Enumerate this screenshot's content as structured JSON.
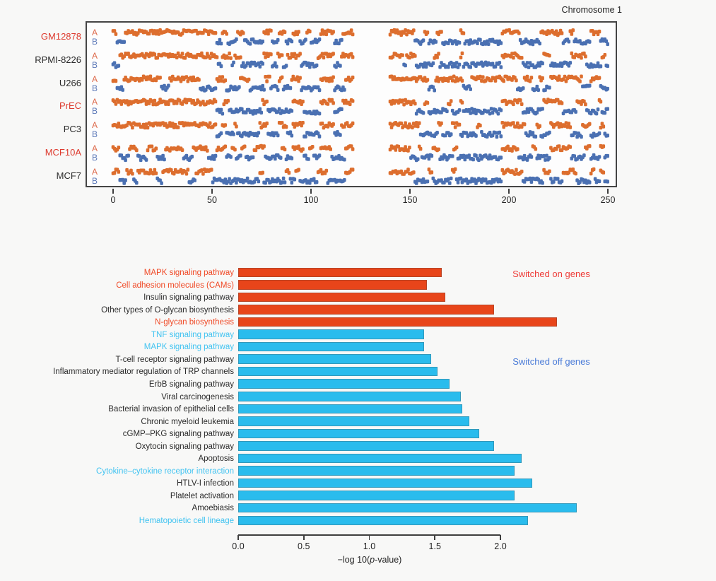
{
  "top_panel": {
    "title": "Chromosome 1",
    "track_labels": {
      "a": "A",
      "b": "B"
    },
    "cell_lines": [
      {
        "name": "GM12878",
        "label_color": "#dd3a2e"
      },
      {
        "name": "RPMI-8226",
        "label_color": "#2b2b2b"
      },
      {
        "name": "U266",
        "label_color": "#2b2b2b"
      },
      {
        "name": "PrEC",
        "label_color": "#dd3a2e"
      },
      {
        "name": "PC3",
        "label_color": "#2b2b2b"
      },
      {
        "name": "MCF10A",
        "label_color": "#dd3a2e"
      },
      {
        "name": "MCF7",
        "label_color": "#2b2b2b"
      }
    ],
    "colors": {
      "compartment_A": "#dd6e2e",
      "compartment_B": "#4a70b2",
      "a_letter": "#dd6a4c",
      "b_letter": "#5c79b8",
      "axis": "#3e3e3e"
    }
  },
  "chart_data": [
    {
      "type": "heatmap",
      "title": "Chromosome 1",
      "description": "A/B chromatin compartment calls along chromosome 1 in Mb; orange = A compartment, blue = B compartment; centromere gap has no data",
      "x_range": [
        0,
        250
      ],
      "x_ticks": [
        0,
        50,
        100,
        150,
        200,
        250
      ],
      "centromere_gap": [
        121.5,
        139.5
      ],
      "rows": [
        "GM12878",
        "RPMI-8226",
        "U266",
        "PrEC",
        "PC3",
        "MCF10A",
        "MCF7"
      ],
      "a_segments": {
        "GM12878": [
          [
            0,
            2
          ],
          [
            6,
            52
          ],
          [
            55,
            58
          ],
          [
            63,
            66
          ],
          [
            76,
            80
          ],
          [
            84,
            87
          ],
          [
            91,
            94
          ],
          [
            98,
            100
          ],
          [
            105,
            112
          ],
          [
            116,
            121.5
          ],
          [
            139.5,
            152
          ],
          [
            157,
            159.5
          ],
          [
            163.5,
            166
          ],
          [
            175,
            177.5
          ],
          [
            196,
            205.5
          ],
          [
            216,
            227
          ],
          [
            230.5,
            233
          ],
          [
            241,
            246
          ]
        ],
        "RPMI-8226": [
          [
            3.5,
            53
          ],
          [
            55,
            60
          ],
          [
            61.5,
            65
          ],
          [
            76,
            80
          ],
          [
            83,
            86
          ],
          [
            88,
            95
          ],
          [
            103,
            112
          ],
          [
            115,
            121.5
          ],
          [
            139.5,
            147
          ],
          [
            148,
            153
          ],
          [
            162,
            165
          ],
          [
            175,
            177
          ],
          [
            196,
            207
          ],
          [
            217,
            221
          ],
          [
            231,
            239
          ],
          [
            246.5,
            249
          ]
        ],
        "U266": [
          [
            0,
            2
          ],
          [
            5,
            24
          ],
          [
            28,
            44
          ],
          [
            52,
            57
          ],
          [
            64,
            69
          ],
          [
            77,
            79.5
          ],
          [
            84,
            86
          ],
          [
            90,
            95
          ],
          [
            105,
            112
          ],
          [
            117,
            121.5
          ],
          [
            139.5,
            159
          ],
          [
            163,
            177
          ],
          [
            181,
            204
          ],
          [
            207.5,
            212
          ],
          [
            215,
            217
          ],
          [
            221,
            237
          ],
          [
            241,
            246
          ]
        ],
        "PrEC": [
          [
            0,
            52
          ],
          [
            56,
            58.5
          ],
          [
            75,
            78
          ],
          [
            91,
            96
          ],
          [
            105,
            112
          ],
          [
            116,
            121.5
          ],
          [
            139.5,
            153
          ],
          [
            157,
            159
          ],
          [
            169,
            171
          ],
          [
            175,
            177
          ],
          [
            196,
            207
          ],
          [
            217,
            227
          ],
          [
            234,
            239
          ],
          [
            245,
            247
          ]
        ],
        "PC3": [
          [
            0,
            52
          ],
          [
            55,
            57
          ],
          [
            61,
            63
          ],
          [
            74,
            78
          ],
          [
            84,
            88
          ],
          [
            91,
            96
          ],
          [
            105,
            112
          ],
          [
            115,
            121.5
          ],
          [
            139.5,
            155
          ],
          [
            164,
            166
          ],
          [
            171,
            175
          ],
          [
            184,
            186
          ],
          [
            196,
            208
          ],
          [
            214,
            216
          ],
          [
            221,
            231
          ],
          [
            237,
            241
          ],
          [
            246,
            248
          ]
        ],
        "MCF10A": [
          [
            0,
            3
          ],
          [
            8,
            12
          ],
          [
            17,
            22
          ],
          [
            26,
            35
          ],
          [
            40,
            48
          ],
          [
            52,
            57
          ],
          [
            60,
            62
          ],
          [
            65,
            67
          ],
          [
            71,
            77
          ],
          [
            85,
            87
          ],
          [
            91,
            96
          ],
          [
            99,
            101
          ],
          [
            105,
            110
          ],
          [
            117,
            121.5
          ],
          [
            139.5,
            150
          ],
          [
            154,
            156
          ],
          [
            161,
            165
          ],
          [
            172,
            174
          ],
          [
            196,
            205
          ],
          [
            212,
            214
          ],
          [
            221,
            231
          ],
          [
            238,
            241
          ],
          [
            246,
            248
          ]
        ],
        "MCF7": [
          [
            0,
            3
          ],
          [
            7,
            10
          ],
          [
            12,
            22
          ],
          [
            25,
            38
          ],
          [
            42,
            50
          ],
          [
            74,
            76
          ],
          [
            87,
            89
          ],
          [
            92,
            94
          ],
          [
            103,
            108
          ],
          [
            117,
            121.5
          ],
          [
            139.5,
            152
          ],
          [
            159,
            161
          ],
          [
            171,
            173
          ],
          [
            196,
            207
          ],
          [
            217,
            221
          ],
          [
            227,
            234
          ],
          [
            241,
            243
          ],
          [
            246,
            248
          ]
        ]
      }
    },
    {
      "type": "bar",
      "orientation": "horizontal",
      "xlabel": "−log 10(p-value)",
      "xlabel_parts": {
        "prefix": "−log 10(",
        "italic": "p",
        "suffix": "-value)"
      },
      "xlim": [
        0,
        2.0
      ],
      "x_ticks": [
        "0.0",
        "0.5",
        "1.0",
        "1.5",
        "2.0"
      ],
      "categories": [
        "MAPK signaling pathway",
        "Cell adhesion molecules (CAMs)",
        "Insulin signaling pathway",
        "Other types of O-glycan biosynthesis",
        "N-glycan biosynthesis",
        "TNF signaling pathway",
        "MAPK signaling pathway",
        "T-cell receptor signaling pathway",
        "Inflammatory mediator regulation of TRP channels",
        "ErbB signaling pathway",
        "Viral carcinogenesis",
        "Bacterial invasion of epithelial cells",
        "Chronic myeloid leukemia",
        "cGMP–PKG signaling pathway",
        "Oxytocin signaling pathway",
        "Apoptosis",
        "Cytokine–cytokine receptor interaction",
        "HTLV-I infection",
        "Platelet activation",
        "Amoebiasis",
        "Hematopoietic cell lineage"
      ],
      "values": [
        1.55,
        1.44,
        1.58,
        1.95,
        2.43,
        1.42,
        1.42,
        1.47,
        1.52,
        1.61,
        1.7,
        1.71,
        1.76,
        1.84,
        1.95,
        2.16,
        2.11,
        2.24,
        2.11,
        2.58,
        2.21
      ],
      "groups": [
        "on",
        "on",
        "on",
        "on",
        "on",
        "off",
        "off",
        "off",
        "off",
        "off",
        "off",
        "off",
        "off",
        "off",
        "off",
        "off",
        "off",
        "off",
        "off",
        "off",
        "off"
      ],
      "label_colors": [
        "red",
        "red",
        "black",
        "black",
        "red",
        "cyan",
        "cyan",
        "black",
        "black",
        "black",
        "black",
        "black",
        "black",
        "black",
        "black",
        "black",
        "cyan",
        "black",
        "black",
        "black",
        "cyan"
      ],
      "label_palette": {
        "red": "#f04a27",
        "cyan": "#41c3f1",
        "black": "#2b2b2b"
      },
      "bar_colors": {
        "on": "#e8451a",
        "off": "#2abced"
      },
      "annotations": [
        {
          "text": "Switched on genes",
          "color": "#ee3c38"
        },
        {
          "text": "Switched off genes",
          "color": "#4b7cd8"
        }
      ]
    }
  ]
}
